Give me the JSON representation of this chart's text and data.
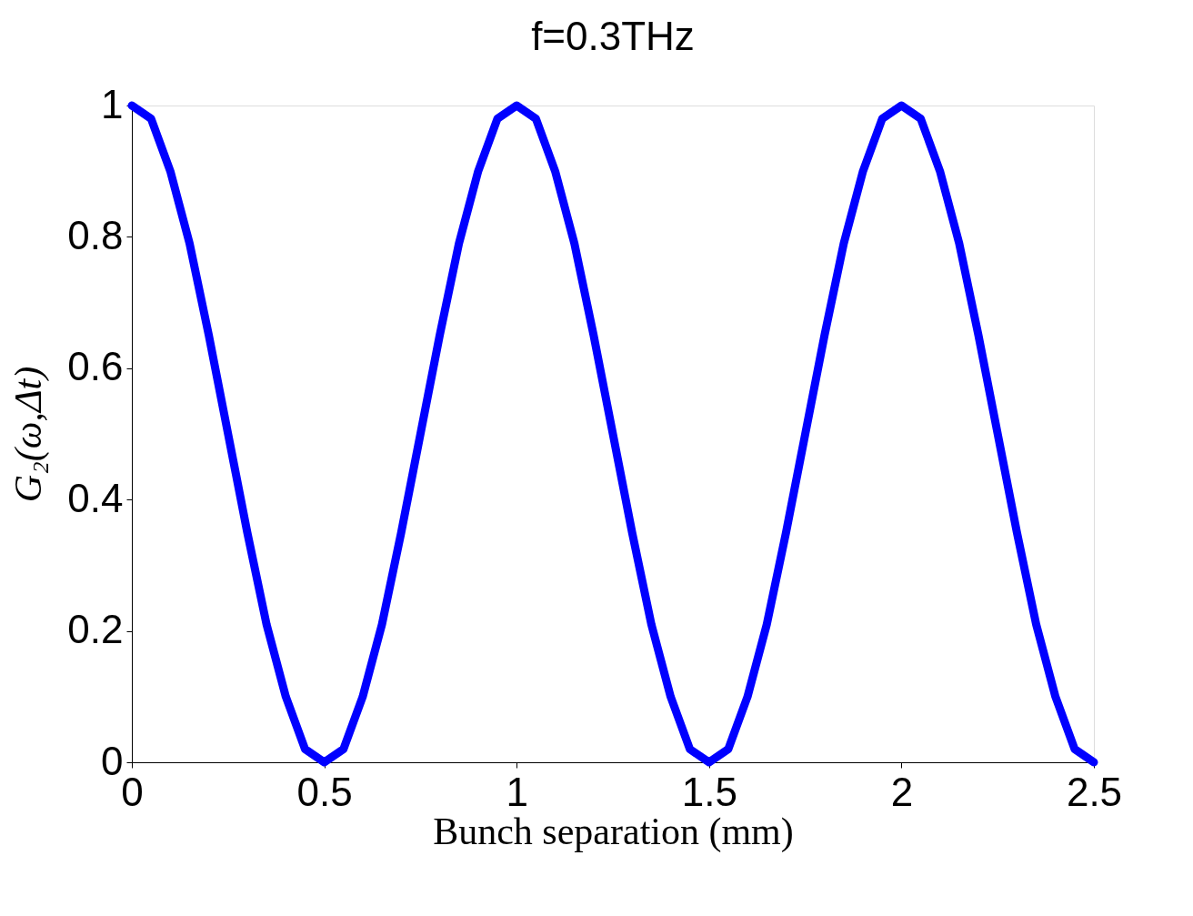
{
  "chart_data": {
    "type": "line",
    "title": "f=0.3THz",
    "xlabel": "Bunch separation (mm)",
    "ylabel": "G₂(ω,Δt)",
    "x": [
      0,
      0.05,
      0.1,
      0.15,
      0.2,
      0.25,
      0.3,
      0.35,
      0.4,
      0.45,
      0.5,
      0.55,
      0.6,
      0.65,
      0.7,
      0.75,
      0.8,
      0.85,
      0.9,
      0.95,
      1,
      1.05,
      1.1,
      1.15,
      1.2,
      1.25,
      1.3,
      1.35,
      1.4,
      1.45,
      1.5,
      1.55,
      1.6,
      1.65,
      1.7,
      1.75,
      1.8,
      1.85,
      1.9,
      1.95,
      2,
      2.05,
      2.1,
      2.15,
      2.2,
      2.25,
      2.3,
      2.35,
      2.4,
      2.45,
      2.5
    ],
    "series": [
      {
        "color": "#0000ff",
        "values": [
          1,
          0.98,
          0.9,
          0.79,
          0.65,
          0.5,
          0.35,
          0.21,
          0.1,
          0.02,
          0,
          0.02,
          0.1,
          0.21,
          0.35,
          0.5,
          0.65,
          0.79,
          0.9,
          0.98,
          1,
          0.98,
          0.9,
          0.79,
          0.65,
          0.5,
          0.35,
          0.21,
          0.1,
          0.02,
          0,
          0.02,
          0.1,
          0.21,
          0.35,
          0.5,
          0.65,
          0.79,
          0.9,
          0.98,
          1,
          0.98,
          0.9,
          0.79,
          0.65,
          0.5,
          0.35,
          0.21,
          0.1,
          0.02,
          0
        ]
      }
    ],
    "xlim": [
      0,
      2.5
    ],
    "ylim": [
      0,
      1
    ],
    "xticks": [
      0,
      0.5,
      1,
      1.5,
      2,
      2.5
    ],
    "yticks": [
      0,
      0.2,
      0.4,
      0.6,
      0.8,
      1
    ],
    "grid": false,
    "legend": false,
    "line_style": "solid"
  }
}
